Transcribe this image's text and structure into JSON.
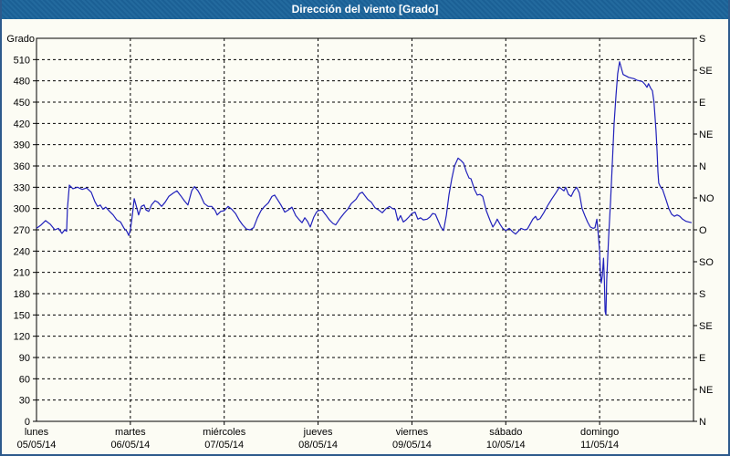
{
  "title": "Dirección del viento [Grado]",
  "colors": {
    "title_bar_bg": "#1b6095",
    "title_text": "#ffffff",
    "frame_border": "#2d5a8c",
    "plot_background": "#fcfcf4",
    "grid": "#000000",
    "line": "#2121bb"
  },
  "y_axis_left": {
    "label": "Grado",
    "tick_step": 30,
    "ticks": [
      0,
      30,
      60,
      90,
      120,
      150,
      180,
      210,
      240,
      270,
      300,
      330,
      360,
      390,
      420,
      450,
      480,
      510
    ]
  },
  "y_axis_right": {
    "tick_step_degrees": 45,
    "ticks": [
      {
        "deg": 0,
        "label": "N"
      },
      {
        "deg": 45,
        "label": "NE"
      },
      {
        "deg": 90,
        "label": "E"
      },
      {
        "deg": 135,
        "label": "SE"
      },
      {
        "deg": 180,
        "label": "S"
      },
      {
        "deg": 225,
        "label": "SO"
      },
      {
        "deg": 270,
        "label": "O"
      },
      {
        "deg": 315,
        "label": "NO"
      },
      {
        "deg": 360,
        "label": "N"
      },
      {
        "deg": 405,
        "label": "NE"
      },
      {
        "deg": 450,
        "label": "E"
      },
      {
        "deg": 495,
        "label": "SE"
      },
      {
        "deg": 540,
        "label": "S"
      }
    ]
  },
  "x_axis": {
    "days": [
      {
        "name": "lunes",
        "date": "05/05/14"
      },
      {
        "name": "martes",
        "date": "06/05/14"
      },
      {
        "name": "miércoles",
        "date": "07/05/14"
      },
      {
        "name": "jueves",
        "date": "08/05/14"
      },
      {
        "name": "viernes",
        "date": "09/05/14"
      },
      {
        "name": "sábado",
        "date": "10/05/14"
      },
      {
        "name": "domingo",
        "date": "11/05/14"
      }
    ]
  },
  "chart_data": {
    "type": "line",
    "title": "Dirección del viento [Grado]",
    "ylabel": "Grado",
    "ylim": [
      0,
      540
    ],
    "y_tick_step": 30,
    "x_unit": "hours_since_mon_00",
    "xlim": [
      0,
      168
    ],
    "grid": "dashed",
    "legend_position": "none",
    "series": [
      {
        "name": "Dirección del viento",
        "color": "#2121bb",
        "points": [
          [
            0,
            272
          ],
          [
            1.2,
            277
          ],
          [
            2.3,
            283
          ],
          [
            3.5,
            278
          ],
          [
            4.7,
            270
          ],
          [
            5.6,
            272
          ],
          [
            6.5,
            265
          ],
          [
            7.2,
            270
          ],
          [
            7.7,
            268
          ],
          [
            7.9,
            300
          ],
          [
            8.4,
            333
          ],
          [
            9.3,
            328
          ],
          [
            10.5,
            330
          ],
          [
            11.7,
            327
          ],
          [
            12.8,
            329
          ],
          [
            14,
            323
          ],
          [
            14.9,
            310
          ],
          [
            15.6,
            303
          ],
          [
            16.3,
            305
          ],
          [
            17,
            299
          ],
          [
            17.7,
            302
          ],
          [
            18.7,
            296
          ],
          [
            19.6,
            291
          ],
          [
            20.5,
            284
          ],
          [
            21.5,
            281
          ],
          [
            22.4,
            272
          ],
          [
            23.1,
            268
          ],
          [
            23.6,
            262
          ],
          [
            24,
            270
          ],
          [
            24.5,
            290
          ],
          [
            25,
            314
          ],
          [
            25.7,
            300
          ],
          [
            26.1,
            291
          ],
          [
            26.8,
            303
          ],
          [
            27.5,
            305
          ],
          [
            28,
            298
          ],
          [
            28.7,
            296
          ],
          [
            29.4,
            305
          ],
          [
            30.3,
            311
          ],
          [
            31,
            309
          ],
          [
            32,
            303
          ],
          [
            32.9,
            309
          ],
          [
            33.8,
            317
          ],
          [
            35,
            322
          ],
          [
            35.9,
            325
          ],
          [
            36.9,
            318
          ],
          [
            37.8,
            311
          ],
          [
            38.7,
            305
          ],
          [
            39.7,
            325
          ],
          [
            40.4,
            331
          ],
          [
            41.3,
            325
          ],
          [
            42,
            318
          ],
          [
            42.9,
            307
          ],
          [
            43.9,
            303
          ],
          [
            44.8,
            303
          ],
          [
            45.7,
            297
          ],
          [
            46.2,
            291
          ],
          [
            47.1,
            296
          ],
          [
            48,
            297
          ],
          [
            49,
            303
          ],
          [
            49.9,
            299
          ],
          [
            50.9,
            293
          ],
          [
            51.8,
            284
          ],
          [
            52.7,
            277
          ],
          [
            53.7,
            271
          ],
          [
            54.6,
            270
          ],
          [
            55.5,
            273
          ],
          [
            56.5,
            287
          ],
          [
            57.4,
            297
          ],
          [
            58.3,
            303
          ],
          [
            59.3,
            308
          ],
          [
            60.2,
            317
          ],
          [
            60.9,
            319
          ],
          [
            61.8,
            311
          ],
          [
            62.5,
            305
          ],
          [
            63.5,
            295
          ],
          [
            64.4,
            298
          ],
          [
            65.3,
            302
          ],
          [
            66.3,
            290
          ],
          [
            67.2,
            284
          ],
          [
            67.9,
            280
          ],
          [
            68.6,
            287
          ],
          [
            69.3,
            282
          ],
          [
            70,
            274
          ],
          [
            70.9,
            288
          ],
          [
            71.6,
            295
          ],
          [
            72,
            297
          ],
          [
            73,
            298
          ],
          [
            74,
            291
          ],
          [
            74.9,
            284
          ],
          [
            75.8,
            279
          ],
          [
            76.5,
            277
          ],
          [
            77.5,
            285
          ],
          [
            78.6,
            293
          ],
          [
            79.6,
            299
          ],
          [
            80.5,
            307
          ],
          [
            81.7,
            313
          ],
          [
            82.6,
            321
          ],
          [
            83.3,
            323
          ],
          [
            84,
            318
          ],
          [
            84.7,
            313
          ],
          [
            85.6,
            309
          ],
          [
            86.6,
            301
          ],
          [
            87.5,
            298
          ],
          [
            88.4,
            294
          ],
          [
            89.4,
            300
          ],
          [
            90.3,
            303
          ],
          [
            91,
            300
          ],
          [
            91.7,
            299
          ],
          [
            92.4,
            283
          ],
          [
            93.1,
            290
          ],
          [
            93.8,
            281
          ],
          [
            94.5,
            284
          ],
          [
            95.2,
            288
          ],
          [
            96,
            293
          ],
          [
            96.8,
            295
          ],
          [
            97.5,
            285
          ],
          [
            98.2,
            287
          ],
          [
            98.9,
            284
          ],
          [
            99.9,
            285
          ],
          [
            100.6,
            288
          ],
          [
            101.3,
            293
          ],
          [
            102,
            292
          ],
          [
            102.7,
            283
          ],
          [
            103.4,
            274
          ],
          [
            104.1,
            269
          ],
          [
            104.8,
            290
          ],
          [
            105.5,
            320
          ],
          [
            106.2,
            342
          ],
          [
            106.9,
            360
          ],
          [
            107.8,
            371
          ],
          [
            108.5,
            368
          ],
          [
            109.2,
            364
          ],
          [
            109.9,
            352
          ],
          [
            110.6,
            343
          ],
          [
            111.1,
            342
          ],
          [
            112,
            327
          ],
          [
            112.7,
            319
          ],
          [
            113.4,
            320
          ],
          [
            114.1,
            317
          ],
          [
            115,
            297
          ],
          [
            116,
            283
          ],
          [
            116.7,
            274
          ],
          [
            117.4,
            280
          ],
          [
            117.8,
            285
          ],
          [
            118.5,
            278
          ],
          [
            119.2,
            272
          ],
          [
            120,
            269
          ],
          [
            120.9,
            272
          ],
          [
            121.8,
            267
          ],
          [
            122.5,
            264
          ],
          [
            123.2,
            268
          ],
          [
            123.9,
            272
          ],
          [
            124.8,
            270
          ],
          [
            125.5,
            271
          ],
          [
            126.2,
            278
          ],
          [
            126.9,
            285
          ],
          [
            127.6,
            289
          ],
          [
            128.1,
            284
          ],
          [
            128.8,
            286
          ],
          [
            129.7,
            294
          ],
          [
            130.7,
            304
          ],
          [
            131.8,
            314
          ],
          [
            132.8,
            322
          ],
          [
            133.7,
            330
          ],
          [
            134.4,
            327
          ],
          [
            134.9,
            325
          ],
          [
            135.3,
            330
          ],
          [
            136,
            320
          ],
          [
            136.7,
            317
          ],
          [
            137.4,
            325
          ],
          [
            138.1,
            330
          ],
          [
            138.8,
            322
          ],
          [
            139.5,
            300
          ],
          [
            140.2,
            290
          ],
          [
            140.9,
            281
          ],
          [
            141.6,
            274
          ],
          [
            142.3,
            272
          ],
          [
            142.8,
            273
          ],
          [
            143.3,
            285
          ],
          [
            143.7,
            260
          ],
          [
            144,
            240
          ],
          [
            144.2,
            210
          ],
          [
            144.4,
            195
          ],
          [
            144.7,
            205
          ],
          [
            145,
            230
          ],
          [
            145.2,
            200
          ],
          [
            145.4,
            155
          ],
          [
            145.6,
            150
          ],
          [
            145.8,
            200
          ],
          [
            146.3,
            260
          ],
          [
            146.8,
            310
          ],
          [
            147.2,
            360
          ],
          [
            147.7,
            420
          ],
          [
            148.2,
            460
          ],
          [
            148.6,
            490
          ],
          [
            149.1,
            507
          ],
          [
            149.6,
            497
          ],
          [
            150,
            489
          ],
          [
            150.7,
            487
          ],
          [
            151.4,
            485
          ],
          [
            152.1,
            484
          ],
          [
            152.8,
            483
          ],
          [
            153.5,
            481
          ],
          [
            154.2,
            480
          ],
          [
            154.9,
            479
          ],
          [
            155.6,
            475
          ],
          [
            156.1,
            471
          ],
          [
            156.5,
            476
          ],
          [
            157,
            470
          ],
          [
            157.5,
            466
          ],
          [
            157.9,
            450
          ],
          [
            158.4,
            410
          ],
          [
            158.7,
            380
          ],
          [
            158.9,
            352
          ],
          [
            159.1,
            336
          ],
          [
            159.6,
            330
          ],
          [
            160.1,
            327
          ],
          [
            160.5,
            320
          ],
          [
            161,
            312
          ],
          [
            161.7,
            300
          ],
          [
            162.4,
            292
          ],
          [
            163.1,
            289
          ],
          [
            163.8,
            291
          ],
          [
            164.5,
            289
          ],
          [
            165.2,
            285
          ],
          [
            166.1,
            282
          ],
          [
            166.8,
            281
          ],
          [
            167.5,
            280
          ]
        ]
      }
    ]
  }
}
